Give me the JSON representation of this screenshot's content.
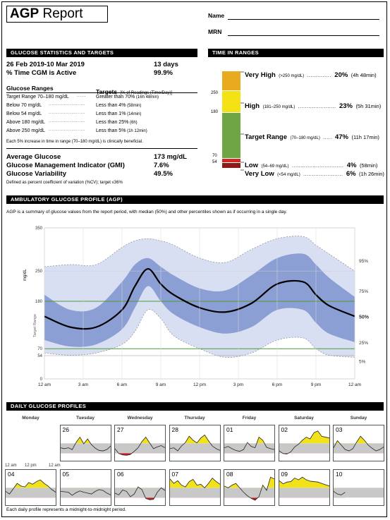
{
  "header": {
    "title_bold": "AGP",
    "title_rest": " Report",
    "name_label": "Name",
    "mrn_label": "MRN"
  },
  "stats": {
    "band_title": "GLUCOSE STATISTICS AND TARGETS",
    "date_range": "26 Feb 2019-10 Mar 2019",
    "days": "13 days",
    "cgm_label": "% Time CGM is Active",
    "cgm_value": "99.9%",
    "ranges_head": "Glucose Ranges",
    "targets_head": "Targets",
    "targets_sub": "[% of Readings (Time/Day)]",
    "rows": [
      {
        "range": "Target Range 70–180 mg/dL",
        "target": "Greater than 70%",
        "time": "(16h 48min)"
      },
      {
        "range": "Below 70 mg/dL",
        "target": "Less than 4%",
        "time": "(58min)"
      },
      {
        "range": "Below 54 mg/dL",
        "target": "Less than 1%",
        "time": "(14min)"
      },
      {
        "range": "Above 180 mg/dL",
        "target": "Less than 25%",
        "time": "(6h)"
      },
      {
        "range": "Above 250 mg/dL",
        "target": "Less than 5%",
        "time": "(1h 12min)"
      }
    ],
    "increase_note": "Each 5% increase in time in range (70–180 mg/dL) is clinically beneficial.",
    "avg_label": "Average Glucose",
    "avg_value": "173 mg/dL",
    "gmi_label": "Glucose Management Indicator (GMI)",
    "gmi_value": "7.6%",
    "var_label": "Glucose Variability",
    "var_value": "49.5%",
    "var_note": "Defined as percent coefficient of variation (%CV); target ≤36%"
  },
  "tir": {
    "band_title": "TIME IN RANGES",
    "axis_labels": [
      "250",
      "180",
      "70",
      "54"
    ],
    "segments": [
      {
        "label": "Very High",
        "range": "(>250 mg/dL)",
        "pct": "20%",
        "time": "(4h 48min)",
        "color": "#e8ab1f",
        "fraction": 0.2
      },
      {
        "label": "High",
        "range": "(181–250 mg/dL)",
        "pct": "23%",
        "time": "(5h 31min)",
        "color": "#f3e214",
        "fraction": 0.23
      },
      {
        "label": "Target Range",
        "range": "(70–180 mg/dL)",
        "pct": "47%",
        "time": "(11h 17min)",
        "color": "#6fa544",
        "fraction": 0.47
      },
      {
        "label": "Low",
        "range": "(54–69 mg/dL)",
        "pct": "4%",
        "time": "(58min)",
        "color": "#d12a24",
        "fraction": 0.04
      },
      {
        "label": "Very Low",
        "range": "(<54 mg/dL)",
        "pct": "6%",
        "time": "(1h 26min)",
        "color": "#8e1a18",
        "fraction": 0.06
      }
    ]
  },
  "agp": {
    "band_title": "AMBULATORY GLUCOSE PROFILE (AGP)",
    "description": "AGP is a summary of glucose values from the report period, with median (50%) and other percentiles shown as if occurring in a single day.",
    "y_unit": "mg/dL",
    "target_range_label": "Target Range",
    "y_ticks": [
      "350",
      "250",
      "180",
      "70",
      "54",
      "0"
    ],
    "x_ticks": [
      "12 am",
      "3 am",
      "6 am",
      "9 am",
      "12 pm",
      "3 pm",
      "6 pm",
      "9 pm",
      "12 am"
    ],
    "percentile_labels": [
      "95%",
      "75%",
      "50%",
      "25%",
      "5%"
    ]
  },
  "chart_data": {
    "type": "area",
    "x": [
      0,
      2,
      4,
      6,
      7,
      8,
      9,
      10,
      12,
      14,
      16,
      18,
      20,
      21,
      22,
      24
    ],
    "xlabels": [
      "12 am",
      "3 am",
      "6 am",
      "9 am",
      "12 pm",
      "3 pm",
      "6 pm",
      "9 pm",
      "12 am"
    ],
    "ylabel": "mg/dL",
    "yticks": [
      0,
      54,
      70,
      180,
      250,
      350
    ],
    "ylim": [
      0,
      350
    ],
    "target_range": [
      70,
      180
    ],
    "series": [
      {
        "name": "95%",
        "values": [
          260,
          265,
          265,
          305,
          320,
          325,
          320,
          310,
          280,
          270,
          300,
          325,
          330,
          310,
          290,
          250
        ]
      },
      {
        "name": "75%",
        "values": [
          195,
          160,
          165,
          225,
          265,
          280,
          260,
          240,
          210,
          205,
          240,
          280,
          290,
          265,
          235,
          190
        ]
      },
      {
        "name": "50%",
        "values": [
          145,
          120,
          120,
          160,
          215,
          255,
          220,
          195,
          165,
          155,
          175,
          220,
          225,
          195,
          170,
          145
        ]
      },
      {
        "name": "25%",
        "values": [
          90,
          75,
          80,
          115,
          165,
          215,
          180,
          150,
          120,
          105,
          120,
          160,
          160,
          130,
          105,
          85
        ]
      },
      {
        "name": "5%",
        "values": [
          60,
          55,
          60,
          80,
          110,
          160,
          140,
          100,
          70,
          50,
          60,
          90,
          95,
          70,
          55,
          50
        ]
      }
    ]
  },
  "daily": {
    "band_title": "DAILY GLUCOSE PROFILES",
    "weekdays": [
      "Monday",
      "Tuesday",
      "Wednesday",
      "Thursday",
      "Friday",
      "Saturday",
      "Sunday"
    ],
    "tick_labels": [
      "12 am",
      "12 pm"
    ],
    "row1": [
      {
        "day": "26",
        "col": 1,
        "profile": [
          130,
          120,
          130,
          110,
          190,
          250,
          175,
          230,
          165,
          125,
          100,
          95,
          110,
          150
        ]
      },
      {
        "day": "27",
        "col": 2,
        "profile": [
          120,
          65,
          50,
          45,
          55,
          90,
          130,
          200,
          250,
          185,
          120,
          140,
          155,
          130
        ]
      },
      {
        "day": "28",
        "col": 3,
        "profile": [
          120,
          130,
          95,
          150,
          190,
          260,
          215,
          185,
          240,
          275,
          210,
          150,
          120,
          100
        ]
      },
      {
        "day": "01",
        "col": 4,
        "profile": [
          130,
          145,
          120,
          100,
          90,
          110,
          190,
          145,
          130,
          250,
          215,
          135,
          120,
          110
        ]
      },
      {
        "day": "02",
        "col": 5,
        "profile": [
          95,
          65,
          60,
          85,
          140,
          170,
          215,
          250,
          230,
          300,
          320,
          260,
          250,
          240
        ]
      },
      {
        "day": "03",
        "col": 6,
        "profile": [
          130,
          210,
          160,
          110,
          95,
          120,
          195,
          260,
          215,
          160,
          125,
          95,
          110,
          140
        ]
      }
    ],
    "row2": [
      {
        "day": "04",
        "col": 0,
        "profile": [
          140,
          110,
          170,
          230,
          200,
          190,
          240,
          220,
          250,
          270,
          230,
          200,
          160,
          130
        ]
      },
      {
        "day": "05",
        "col": 1,
        "profile": [
          140,
          135,
          130,
          95,
          125,
          145,
          130,
          120,
          110,
          140,
          160,
          150,
          120,
          100
        ]
      },
      {
        "day": "06",
        "col": 2,
        "profile": [
          120,
          100,
          155,
          140,
          80,
          110,
          190,
          160,
          60,
          45,
          50,
          130,
          180,
          150
        ]
      },
      {
        "day": "07",
        "col": 3,
        "profile": [
          280,
          230,
          260,
          210,
          190,
          250,
          275,
          210,
          220,
          180,
          230,
          290,
          250,
          220
        ]
      },
      {
        "day": "08",
        "col": 4,
        "profile": [
          200,
          180,
          210,
          230,
          180,
          130,
          90,
          60,
          40,
          80,
          210,
          150,
          300,
          280
        ]
      },
      {
        "day": "09",
        "col": 5,
        "profile": [
          260,
          225,
          245,
          250,
          290,
          270,
          300,
          270,
          255,
          250,
          245,
          230,
          215,
          200
        ]
      },
      {
        "day": "10",
        "col": 6,
        "profile": [
          140,
          110,
          100,
          130,
          null,
          null,
          null,
          null,
          null,
          null,
          null,
          null,
          null,
          null
        ]
      }
    ],
    "footnote": "Each daily profile represents a midnight-to-midnight period."
  }
}
